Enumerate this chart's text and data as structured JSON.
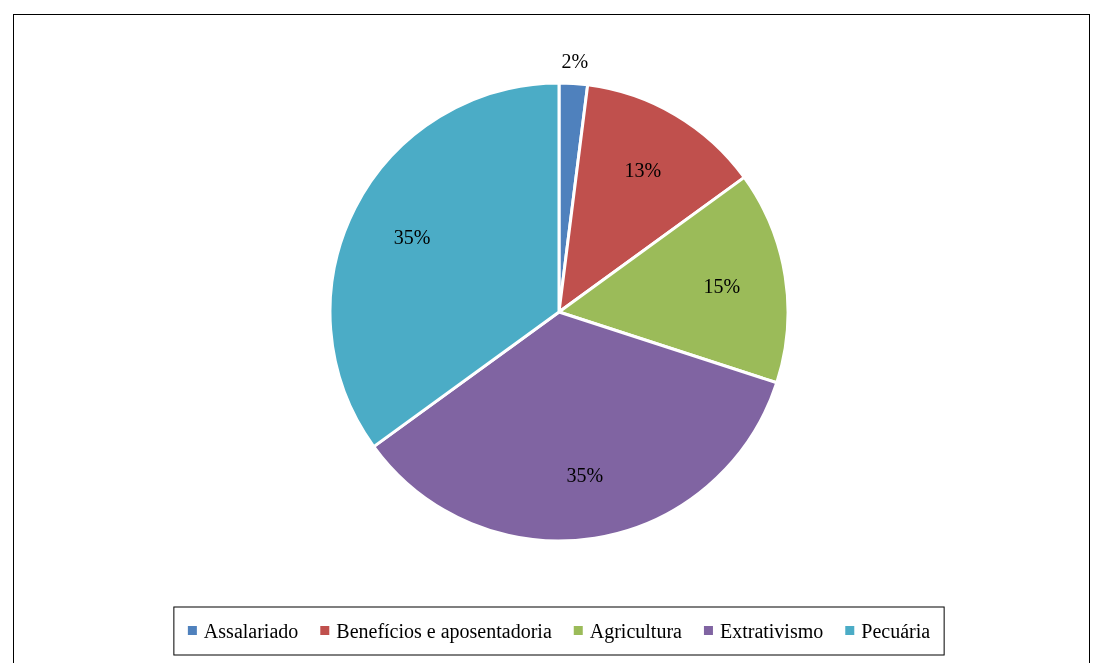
{
  "chart_data": {
    "type": "pie",
    "categories": [
      "Assalariado",
      "Benefícios e aposentadoria",
      "Agricultura",
      "Extrativismo",
      "Pecuária"
    ],
    "values": [
      2,
      13,
      15,
      35,
      35
    ],
    "value_labels": [
      "2%",
      "13%",
      "15%",
      "35%",
      "35%"
    ],
    "colors": [
      "#4f81bd",
      "#c0504d",
      "#9bbb59",
      "#8064a2",
      "#4bacc6"
    ],
    "legend": "bottom"
  }
}
